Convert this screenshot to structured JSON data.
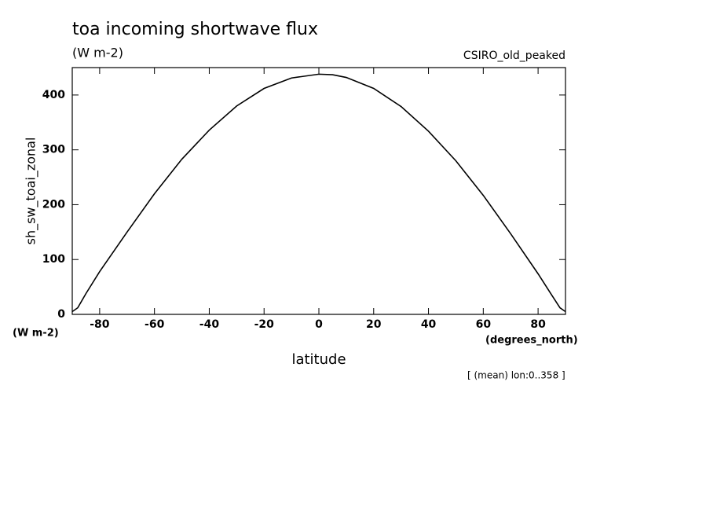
{
  "chart_data": {
    "type": "line",
    "title": "toa incoming shortwave flux",
    "subtitle": "(W m-2)",
    "annotation": "CSIRO_old_peaked",
    "y_label": "sh_sw_toai_zonal",
    "y_units": "(W m-2)",
    "x_label": "latitude",
    "x_units": "(degrees_north)",
    "note": "[ (mean) lon:0..358 ]",
    "x": [
      -90,
      -88,
      -85,
      -80,
      -70,
      -60,
      -50,
      -40,
      -30,
      -20,
      -10,
      0,
      5,
      10,
      20,
      30,
      40,
      50,
      60,
      70,
      80,
      85,
      88,
      90
    ],
    "series": [
      {
        "name": "sh_sw_toai_zonal",
        "color": "#000000",
        "values": [
          5,
          12,
          38,
          78,
          150,
          220,
          283,
          336,
          380,
          412,
          431,
          438,
          437,
          432,
          412,
          379,
          334,
          280,
          217,
          147,
          74,
          35,
          12,
          5
        ]
      }
    ],
    "xlim": [
      -90,
      90
    ],
    "xticks": [
      -80,
      -60,
      -40,
      -20,
      0,
      20,
      40,
      60,
      80
    ],
    "ylim": [
      0,
      450
    ],
    "yticks": [
      0,
      100,
      200,
      300,
      400
    ]
  }
}
